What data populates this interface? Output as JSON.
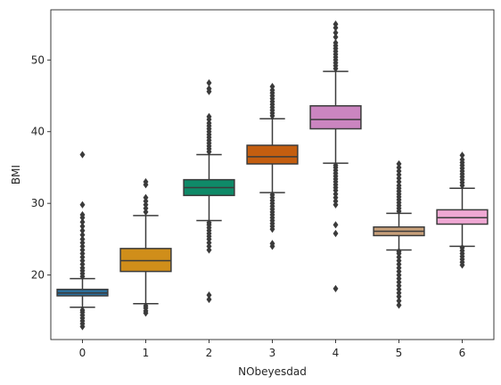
{
  "chart_data": {
    "type": "box",
    "title": "",
    "xlabel": "NObeyesdad",
    "ylabel": "BMI",
    "ylim": [
      11,
      57
    ],
    "yticks": [
      20,
      30,
      40,
      50
    ],
    "grid": false,
    "categories": [
      "0",
      "1",
      "2",
      "3",
      "4",
      "5",
      "6"
    ],
    "boxes": [
      {
        "category": "0",
        "color": "#2c6e9a",
        "whisker_low": 15.5,
        "q1": 17.1,
        "median": 17.5,
        "q3": 18.0,
        "whisker_high": 19.5,
        "outliers": [
          12.8,
          13.2,
          13.6,
          14.0,
          14.4,
          14.8,
          15.1,
          19.8,
          20.2,
          20.6,
          21.0,
          21.5,
          22.0,
          22.5,
          23.0,
          23.5,
          24.0,
          24.5,
          25.0,
          25.6,
          26.2,
          26.8,
          27.4,
          28.0,
          28.4,
          29.8,
          36.8
        ]
      },
      {
        "category": "1",
        "color": "#d08e1a",
        "whisker_low": 16.0,
        "q1": 20.5,
        "median": 22.0,
        "q3": 23.7,
        "whisker_high": 28.3,
        "outliers": [
          14.7,
          15.0,
          15.4,
          15.7,
          28.8,
          29.3,
          29.8,
          30.3,
          30.8,
          32.6,
          33.0
        ]
      },
      {
        "category": "2",
        "color": "#0f8a68",
        "whisker_low": 27.6,
        "q1": 31.1,
        "median": 32.2,
        "q3": 33.3,
        "whisker_high": 36.8,
        "outliers": [
          16.6,
          17.2,
          23.5,
          24.0,
          24.5,
          25.0,
          25.4,
          25.8,
          26.2,
          26.6,
          27.0,
          27.3,
          37.2,
          37.6,
          38.0,
          38.4,
          38.8,
          39.2,
          39.6,
          40.0,
          40.4,
          40.8,
          41.2,
          41.7,
          42.1,
          45.6,
          46.0,
          46.8
        ]
      },
      {
        "category": "3",
        "color": "#c45e10",
        "whisker_low": 31.5,
        "q1": 35.5,
        "median": 36.5,
        "q3": 38.1,
        "whisker_high": 41.8,
        "outliers": [
          24.0,
          24.4,
          26.4,
          26.8,
          27.2,
          27.6,
          28.0,
          28.4,
          28.8,
          29.2,
          29.6,
          30.0,
          30.4,
          30.8,
          31.2,
          42.2,
          42.6,
          43.0,
          43.4,
          43.8,
          44.2,
          44.6,
          45.0,
          45.4,
          45.8,
          46.3
        ]
      },
      {
        "category": "4",
        "color": "#cb85c0",
        "whisker_low": 35.6,
        "q1": 40.4,
        "median": 41.7,
        "q3": 43.6,
        "whisker_high": 48.4,
        "outliers": [
          18.1,
          25.8,
          27.0,
          29.8,
          30.3,
          30.8,
          31.3,
          31.8,
          32.2,
          32.6,
          33.0,
          33.4,
          33.8,
          34.2,
          34.6,
          35.0,
          35.3,
          48.8,
          49.2,
          49.6,
          50.0,
          50.4,
          50.8,
          51.2,
          51.6,
          52.0,
          52.4,
          53.2,
          53.8,
          54.5,
          55.0
        ]
      },
      {
        "category": "5",
        "color": "#c8a07a",
        "whisker_low": 23.5,
        "q1": 25.5,
        "median": 26.1,
        "q3": 26.7,
        "whisker_high": 28.6,
        "outliers": [
          15.8,
          16.4,
          17.0,
          17.5,
          18.0,
          18.5,
          19.0,
          19.5,
          20.0,
          20.5,
          21.0,
          21.5,
          22.0,
          22.5,
          23.0,
          23.3,
          28.9,
          29.3,
          29.7,
          30.1,
          30.5,
          30.9,
          31.3,
          31.7,
          32.1,
          32.5,
          33.0,
          33.5,
          34.0,
          34.5,
          35.0,
          35.5
        ]
      },
      {
        "category": "6",
        "color": "#f0a8d4",
        "whisker_low": 24.0,
        "q1": 27.1,
        "median": 28.0,
        "q3": 29.1,
        "whisker_high": 32.1,
        "outliers": [
          21.4,
          21.8,
          22.2,
          22.6,
          23.0,
          23.4,
          23.8,
          32.5,
          32.9,
          33.3,
          33.7,
          34.1,
          34.5,
          34.9,
          35.3,
          35.7,
          36.1,
          36.7
        ]
      }
    ]
  }
}
